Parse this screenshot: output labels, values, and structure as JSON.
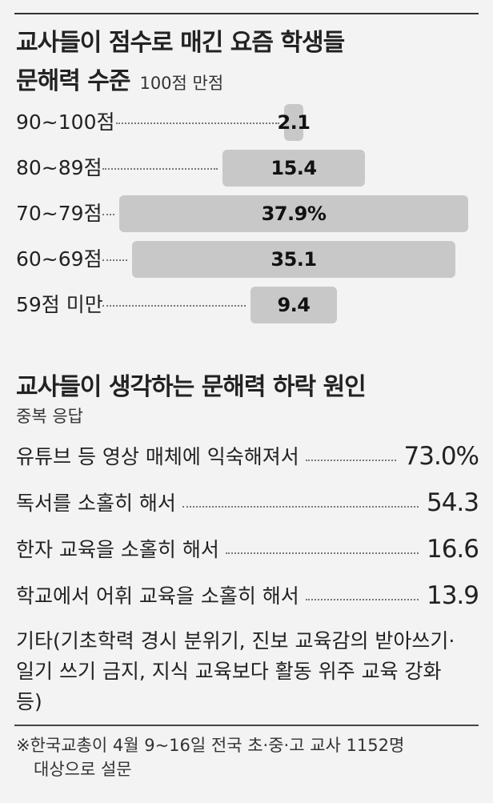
{
  "chart_data": [
    {
      "type": "bar",
      "title": "교사들이 점수로 매긴 요즘 학생들 문해력 수준",
      "title_line1": "교사들이 점수로 매긴 요즘 학생들",
      "title_line2": "문해력 수준",
      "subtitle": "100점 만점",
      "categories": [
        "90~100점",
        "80~89점",
        "70~79점",
        "60~69점",
        "59점 미만"
      ],
      "values": [
        2.1,
        15.4,
        37.9,
        35.1,
        9.4
      ],
      "value_labels": [
        "2.1",
        "15.4",
        "37.9%",
        "35.1",
        "9.4"
      ],
      "bar_color": "#c8c8c8"
    },
    {
      "type": "table",
      "title": "교사들이 생각하는 문해력 하락 원인",
      "subtitle": "중복 응답",
      "rows": [
        {
          "label": "유튜브 등 영상 매체에 익숙해져서",
          "value": 73.0,
          "value_label": "73.0%"
        },
        {
          "label": "독서를 소홀히 해서",
          "value": 54.3,
          "value_label": "54.3"
        },
        {
          "label": "한자 교육을 소홀히 해서",
          "value": 16.6,
          "value_label": "16.6"
        },
        {
          "label": "학교에서 어휘 교육을 소홀히 해서",
          "value": 13.9,
          "value_label": "13.9"
        }
      ],
      "other": "기타(기초학력 경시 분위기, 진보 교육감의 받아쓰기·일기 쓰기 금지, 지식 교육보다 활동 위주 교육 강화 등)"
    }
  ],
  "footnote": {
    "line1": "※한국교총이 4월 9~16일 전국 초·중·고 교사 1152명",
    "line2": "대상으로 설문"
  }
}
